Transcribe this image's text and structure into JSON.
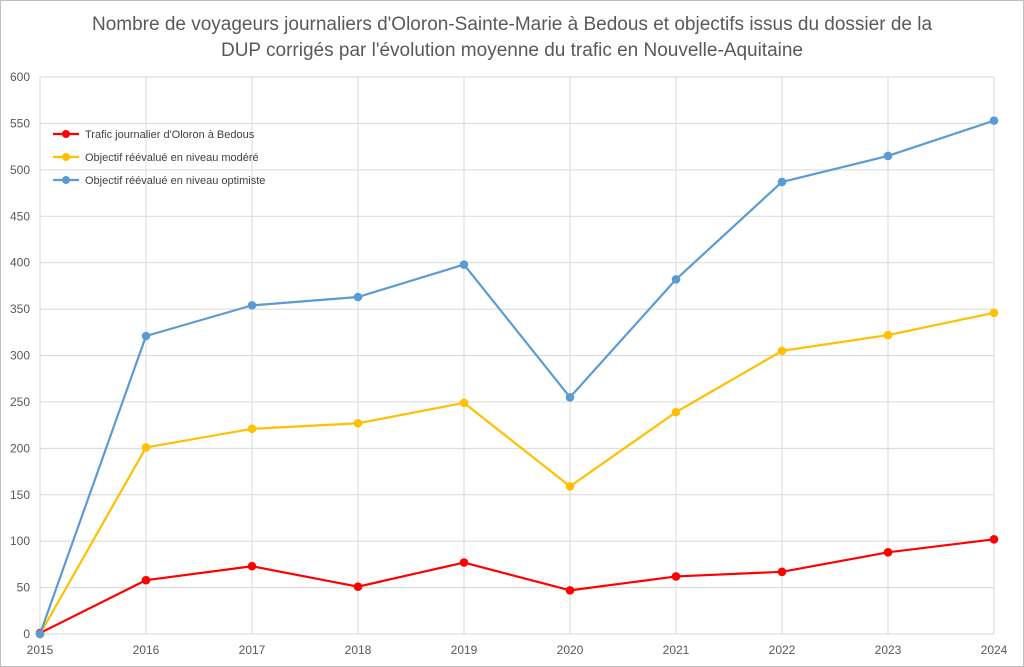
{
  "chart_data": {
    "type": "line",
    "title_line1": "Nombre de voyageurs journaliers d'Oloron-Sainte-Marie à Bedous et objectifs issus du dossier de la",
    "title_line2": "DUP corrigés par l'évolution moyenne du trafic en Nouvelle-Aquitaine",
    "xlabel": "",
    "ylabel": "",
    "x": [
      "2015",
      "2016",
      "2017",
      "2018",
      "2019",
      "2020",
      "2021",
      "2022",
      "2023",
      "2024"
    ],
    "ylim": [
      0,
      600
    ],
    "yticks": [
      0,
      50,
      100,
      150,
      200,
      250,
      300,
      350,
      400,
      450,
      500,
      550,
      600
    ],
    "grid": true,
    "legend_position": "top-left",
    "series": [
      {
        "name": "Trafic journalier d'Oloron à Bedous",
        "color": "#ff0000",
        "values": [
          1,
          58,
          73,
          51,
          77,
          47,
          62,
          67,
          88,
          102
        ]
      },
      {
        "name": "Objectif réévalué en niveau modéré",
        "color": "#ffc000",
        "values": [
          0,
          201,
          221,
          227,
          249,
          159,
          239,
          305,
          322,
          346
        ]
      },
      {
        "name": "Objectif réévalué en niveau optimiste",
        "color": "#5b9bd5",
        "values": [
          0,
          321,
          354,
          363,
          398,
          255,
          382,
          487,
          515,
          553
        ]
      }
    ]
  }
}
